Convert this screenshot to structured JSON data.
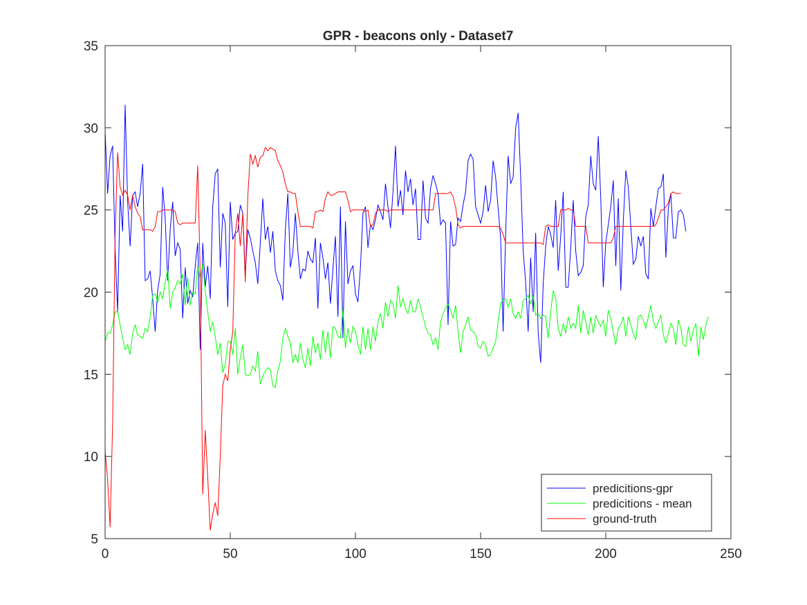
{
  "chart_data": {
    "type": "line",
    "title": "GPR - beacons only - Dataset7",
    "xlabel": "",
    "ylabel": "",
    "xlim": [
      0,
      250
    ],
    "ylim": [
      5,
      35
    ],
    "xticks": [
      0,
      50,
      100,
      150,
      200,
      250
    ],
    "yticks": [
      5,
      10,
      15,
      20,
      25,
      30,
      35
    ],
    "grid": false,
    "legend_location": "bottom-right",
    "series": [
      {
        "name": "predicitions-gpr",
        "color": "#0000ff",
        "values": [
          29.8,
          26.0,
          28.3,
          28.9,
          22.6,
          18.8,
          25.9,
          23.7,
          31.4,
          25.5,
          22.8,
          25.9,
          26.1,
          25.2,
          26.0,
          27.8,
          20.7,
          20.8,
          21.3,
          19.6,
          17.6,
          20.1,
          21.1,
          26.4,
          24.5,
          20.7,
          23.8,
          25.5,
          22.2,
          23.0,
          22.6,
          18.4,
          21.5,
          19.3,
          20.1,
          19.7,
          21.6,
          23.0,
          16.5,
          23.0,
          20.3,
          21.6,
          19.6,
          25.2,
          27.2,
          27.5,
          21.5,
          24.8,
          24.2,
          19.1,
          25.5,
          23.2,
          23.6,
          23.7,
          25.3,
          24.8,
          21.1,
          23.8,
          23.3,
          22.5,
          21.8,
          20.5,
          23.0,
          25.7,
          23.2,
          24.0,
          22.4,
          23.7,
          21.3,
          20.7,
          20.4,
          19.5,
          23.8,
          26.0,
          21.5,
          22.4,
          24.8,
          22.5,
          20.8,
          21.4,
          21.3,
          22.5,
          22.0,
          21.8,
          23.3,
          19.0,
          23.0,
          22.1,
          20.8,
          21.8,
          19.3,
          21.4,
          23.4,
          18.5,
          25.2,
          17.2,
          24.3,
          20.5,
          21.3,
          21.6,
          19.9,
          19.4,
          21.5,
          24.8,
          25.2,
          22.7,
          24.1,
          23.8,
          24.4,
          25.3,
          24.9,
          24.4,
          26.6,
          25.2,
          23.9,
          26.1,
          28.9,
          25.2,
          26.2,
          24.7,
          27.4,
          26.1,
          26.9,
          25.3,
          26.3,
          23.2,
          23.2,
          26.8,
          24.5,
          24.2,
          26.3,
          27.1,
          26.6,
          26.0,
          24.1,
          24.4,
          24.2,
          18.0,
          24.3,
          22.8,
          22.9,
          24.5,
          24.3,
          25.3,
          26.1,
          28.0,
          28.4,
          28.1,
          25.2,
          24.7,
          24.2,
          24.9,
          26.5,
          24.9,
          25.6,
          28.0,
          27.0,
          25.1,
          23.3,
          17.6,
          23.5,
          28.3,
          26.6,
          27.0,
          30.0,
          30.9,
          27.0,
          22.5,
          20.6,
          17.6,
          22.1,
          18.8,
          23.6,
          17.5,
          15.7,
          20.5,
          22.8,
          24.0,
          23.5,
          22.7,
          25.6,
          21.3,
          23.4,
          26.1,
          20.3,
          20.3,
          22.7,
          25.6,
          22.5,
          21.0,
          21.2,
          21.6,
          24.6,
          25.3,
          28.3,
          26.6,
          26.2,
          29.5,
          25.7,
          20.3,
          23.0,
          24.1,
          25.2,
          26.8,
          21.6,
          25.7,
          20.1,
          24.3,
          27.4,
          26.4,
          24.0,
          21.7,
          22.0,
          23.4,
          22.8,
          23.4,
          21.1,
          20.8,
          25.1,
          24.0,
          25.2,
          26.3,
          26.4,
          27.2,
          22.1,
          25.1,
          26.0,
          23.3,
          23.3,
          24.9,
          25.0,
          24.7,
          23.7
        ]
      },
      {
        "name": "predicitions - mean",
        "color": "#00ff00",
        "values": [
          17.0,
          17.5,
          17.5,
          18.0,
          18.8,
          18.8,
          18.0,
          17.2,
          16.5,
          16.8,
          16.2,
          17.5,
          18.0,
          17.4,
          17.3,
          17.2,
          17.8,
          17.6,
          18.5,
          19.8,
          19.9,
          19.4,
          20.0,
          19.6,
          20.6,
          21.4,
          19.0,
          20.0,
          20.3,
          20.7,
          20.5,
          21.1,
          19.2,
          20.9,
          19.2,
          20.0,
          19.9,
          21.6,
          20.8,
          21.7,
          20.1,
          18.8,
          17.6,
          18.2,
          17.3,
          16.2,
          16.9,
          15.1,
          15.6,
          17.0,
          17.0,
          16.2,
          17.8,
          15.0,
          16.0,
          16.8,
          15.0,
          14.9,
          15.0,
          15.5,
          15.2,
          16.4,
          14.4,
          14.9,
          15.2,
          15.4,
          15.3,
          14.3,
          14.2,
          15.2,
          15.8,
          17.2,
          17.8,
          17.3,
          16.9,
          15.7,
          16.2,
          15.7,
          16.9,
          15.9,
          15.4,
          16.6,
          15.5,
          17.3,
          16.3,
          16.9,
          15.9,
          17.7,
          16.3,
          17.6,
          16.0,
          17.9,
          17.8,
          17.3,
          17.2,
          19.0,
          16.6,
          17.8,
          16.9,
          17.9,
          17.6,
          16.8,
          16.2,
          17.9,
          16.5,
          17.8,
          16.5,
          17.9,
          17.0,
          18.2,
          18.7,
          17.8,
          19.4,
          18.5,
          19.5,
          19.3,
          18.4,
          20.4,
          19.1,
          19.6,
          19.0,
          18.7,
          19.5,
          18.8,
          18.8,
          19.6,
          19.1,
          18.5,
          17.9,
          17.5,
          17.4,
          16.8,
          17.2,
          16.5,
          18.2,
          18.7,
          19.0,
          19.3,
          18.9,
          18.4,
          19.2,
          17.6,
          16.3,
          17.6,
          18.0,
          18.5,
          17.7,
          17.6,
          17.4,
          16.7,
          16.6,
          17.0,
          16.8,
          16.1,
          16.2,
          16.6,
          17.0,
          18.2,
          19.3,
          19.6,
          19.6,
          19.1,
          19.6,
          18.7,
          18.4,
          18.8,
          18.4,
          19.5,
          19.6,
          19.8,
          19.3,
          19.8,
          18.6,
          18.7,
          18.4,
          18.6,
          18.5,
          17.2,
          18.8,
          20.1,
          19.6,
          17.8,
          17.3,
          18.1,
          17.5,
          18.5,
          17.8,
          18.1,
          17.8,
          19.2,
          17.5,
          18.9,
          18.2,
          17.4,
          18.5,
          17.5,
          18.6,
          18.2,
          17.9,
          18.3,
          17.3,
          18.9,
          18.4,
          17.6,
          16.8,
          17.8,
          18.0,
          18.5,
          17.3,
          18.5,
          18.0,
          17.5,
          17.1,
          18.5,
          18.6,
          18.3,
          17.8,
          18.5,
          19.2,
          18.2,
          17.8,
          18.2,
          18.6,
          17.4,
          16.9,
          17.5,
          18.1,
          17.8,
          16.8,
          18.3,
          17.8,
          16.8,
          16.7,
          17.9,
          17.0,
          17.7,
          18.1,
          16.1,
          17.9,
          17.1,
          18.0,
          18.5
        ]
      },
      {
        "name": "ground-truth",
        "color": "#ff0000",
        "values": [
          10.3,
          8.6,
          5.7,
          12.0,
          23.5,
          28.5,
          26.4,
          25.9,
          26.2,
          25.9,
          25.0,
          25.9,
          25.2,
          24.8,
          24.6,
          23.8,
          23.8,
          23.8,
          23.8,
          23.7,
          24.0,
          24.9,
          24.9,
          25.0,
          25.0,
          25.0,
          25.0,
          25.0,
          24.9,
          24.2,
          24.1,
          24.2,
          24.2,
          24.2,
          24.2,
          24.2,
          24.2,
          27.7,
          21.0,
          7.7,
          11.6,
          8.7,
          5.5,
          6.5,
          7.2,
          6.4,
          10.0,
          14.3,
          15.0,
          14.6,
          16.5,
          17.6,
          23.6,
          24.8,
          22.8,
          24.8,
          20.6,
          25.8,
          28.4,
          27.8,
          28.3,
          27.6,
          28.2,
          28.3,
          28.8,
          28.6,
          28.8,
          28.7,
          28.6,
          28.0,
          27.7,
          27.3,
          26.6,
          26.1,
          26.1,
          26.0,
          26.0,
          24.9,
          24.0,
          24.0,
          24.0,
          24.0,
          24.0,
          23.9,
          24.9,
          24.9,
          25.0,
          24.9,
          25.7,
          26.1,
          25.9,
          25.9,
          26.0,
          26.1,
          26.1,
          26.1,
          26.1,
          25.6,
          24.9,
          25.0,
          25.0,
          25.0,
          25.0,
          25.0,
          24.9,
          25.0,
          24.0,
          24.1,
          24.8,
          25.0,
          25.0,
          25.0,
          25.0,
          24.9,
          25.0,
          25.0,
          25.0,
          25.0,
          25.0,
          25.0,
          25.0,
          25.0,
          25.0,
          25.0,
          25.0,
          25.0,
          25.0,
          25.0,
          25.0,
          25.0,
          25.0,
          25.0,
          26.0,
          26.0,
          26.0,
          26.0,
          26.0,
          26.0,
          26.1,
          25.8,
          25.2,
          24.1,
          23.9,
          24.0,
          24.0,
          24.0,
          24.0,
          24.0,
          24.0,
          24.0,
          24.0,
          24.0,
          24.0,
          24.0,
          24.0,
          24.0,
          24.0,
          24.0,
          23.9,
          23.5,
          23.0,
          23.0,
          23.0,
          23.0,
          23.0,
          23.0,
          23.0,
          23.0,
          23.0,
          23.0,
          23.0,
          23.0,
          23.0,
          23.0,
          23.0,
          22.9,
          24.0,
          24.1,
          24.0,
          24.0,
          24.0,
          24.0,
          25.0,
          25.0,
          25.0,
          25.1,
          25.0,
          25.0,
          24.0,
          24.0,
          24.0,
          24.0,
          24.0,
          23.0,
          23.0,
          23.0,
          23.0,
          23.0,
          23.0,
          23.0,
          23.0,
          23.0,
          23.0,
          23.3,
          24.0,
          24.0,
          24.0,
          24.0,
          24.0,
          24.0,
          24.0,
          24.0,
          24.0,
          24.0,
          24.0,
          24.0,
          24.0,
          24.0,
          24.0,
          24.0,
          24.1,
          24.5,
          25.0,
          25.0,
          25.2,
          25.4,
          26.0,
          26.1,
          26.0,
          26.0,
          26.0
        ]
      }
    ]
  }
}
